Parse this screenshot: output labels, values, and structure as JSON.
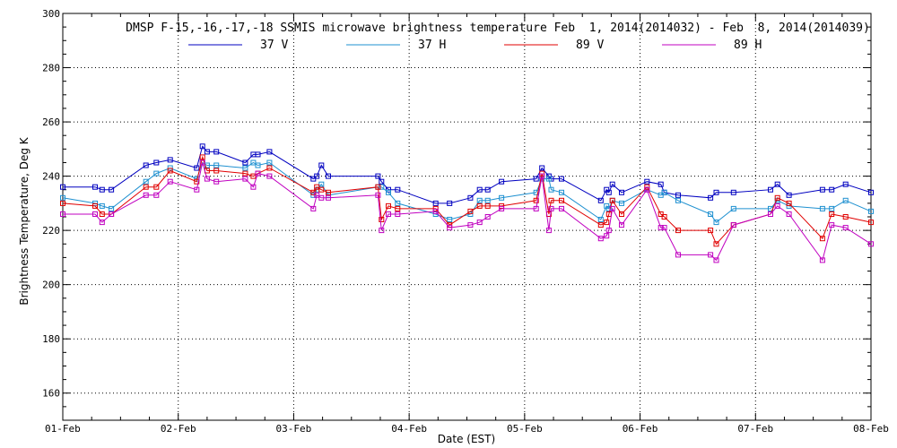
{
  "chart_data": {
    "type": "line",
    "title": "DMSP F-15,-16,-17,-18 SSMIS microwave brightness temperature Feb  1, 2014(2014032) - Feb  8, 2014(2014039)",
    "xlabel": "Date (EST)",
    "ylabel": "Brightness Temperature, Deg K",
    "xlim": [
      0,
      7
    ],
    "ylim": [
      150,
      300
    ],
    "x_tick_values": [
      0,
      1,
      2,
      3,
      4,
      5,
      6,
      7
    ],
    "x_tick_labels": [
      "01-Feb",
      "02-Feb",
      "03-Feb",
      "04-Feb",
      "05-Feb",
      "06-Feb",
      "07-Feb",
      "08-Feb"
    ],
    "y_ticks": [
      160,
      180,
      200,
      220,
      240,
      260,
      280,
      300
    ],
    "grid": true,
    "legend_position": "top-center",
    "x": [
      0.0,
      0.28,
      0.34,
      0.42,
      0.72,
      0.81,
      0.93,
      1.16,
      1.21,
      1.25,
      1.33,
      1.58,
      1.65,
      1.69,
      1.79,
      2.17,
      2.2,
      2.24,
      2.3,
      2.73,
      2.76,
      2.82,
      2.9,
      3.23,
      3.35,
      3.53,
      3.61,
      3.68,
      3.8,
      4.1,
      4.15,
      4.21,
      4.23,
      4.32,
      4.66,
      4.71,
      4.73,
      4.76,
      4.84,
      5.06,
      5.18,
      5.21,
      5.33,
      5.61,
      5.66,
      5.81,
      6.13,
      6.19,
      6.29,
      6.58,
      6.66,
      6.78,
      7.0
    ],
    "series": [
      {
        "name": "37 V",
        "color": "#0000c0",
        "values": [
          236,
          236,
          235,
          235,
          244,
          245,
          246,
          243,
          251,
          249,
          249,
          245,
          248,
          248,
          249,
          239,
          240,
          244,
          240,
          240,
          238,
          235,
          235,
          230,
          230,
          232,
          235,
          235,
          238,
          239,
          243,
          240,
          239,
          239,
          231,
          235,
          234,
          237,
          234,
          238,
          237,
          234,
          233,
          232,
          234,
          234,
          235,
          237,
          233,
          235,
          235,
          237,
          234
        ]
      },
      {
        "name": "37 H",
        "color": "#1e90d0",
        "values": [
          232,
          230,
          229,
          228,
          238,
          241,
          243,
          239,
          245,
          244,
          244,
          243,
          245,
          244,
          245,
          233,
          235,
          237,
          233,
          236,
          236,
          234,
          230,
          226,
          224,
          226,
          231,
          231,
          232,
          234,
          239,
          239,
          235,
          234,
          224,
          229,
          228,
          231,
          230,
          235,
          233,
          234,
          231,
          226,
          223,
          228,
          228,
          231,
          229,
          228,
          228,
          231,
          227
        ]
      },
      {
        "name": "89 V",
        "color": "#e00000",
        "values": [
          230,
          229,
          226,
          226,
          236,
          236,
          242,
          238,
          247,
          242,
          242,
          241,
          240,
          241,
          243,
          234,
          236,
          235,
          234,
          236,
          224,
          229,
          228,
          228,
          222,
          227,
          229,
          229,
          229,
          231,
          241,
          226,
          231,
          231,
          222,
          223,
          226,
          231,
          226,
          236,
          226,
          225,
          220,
          220,
          215,
          222,
          226,
          232,
          230,
          217,
          226,
          225,
          223
        ]
      },
      {
        "name": "89 H",
        "color": "#c000c0",
        "values": [
          226,
          226,
          223,
          226,
          233,
          233,
          238,
          235,
          245,
          239,
          238,
          239,
          236,
          241,
          240,
          228,
          233,
          232,
          232,
          233,
          220,
          226,
          226,
          227,
          221,
          222,
          223,
          225,
          228,
          228,
          240,
          220,
          228,
          228,
          217,
          218,
          220,
          228,
          222,
          235,
          221,
          221,
          211,
          211,
          209,
          222,
          226,
          229,
          226,
          209,
          222,
          221,
          215
        ]
      }
    ]
  }
}
